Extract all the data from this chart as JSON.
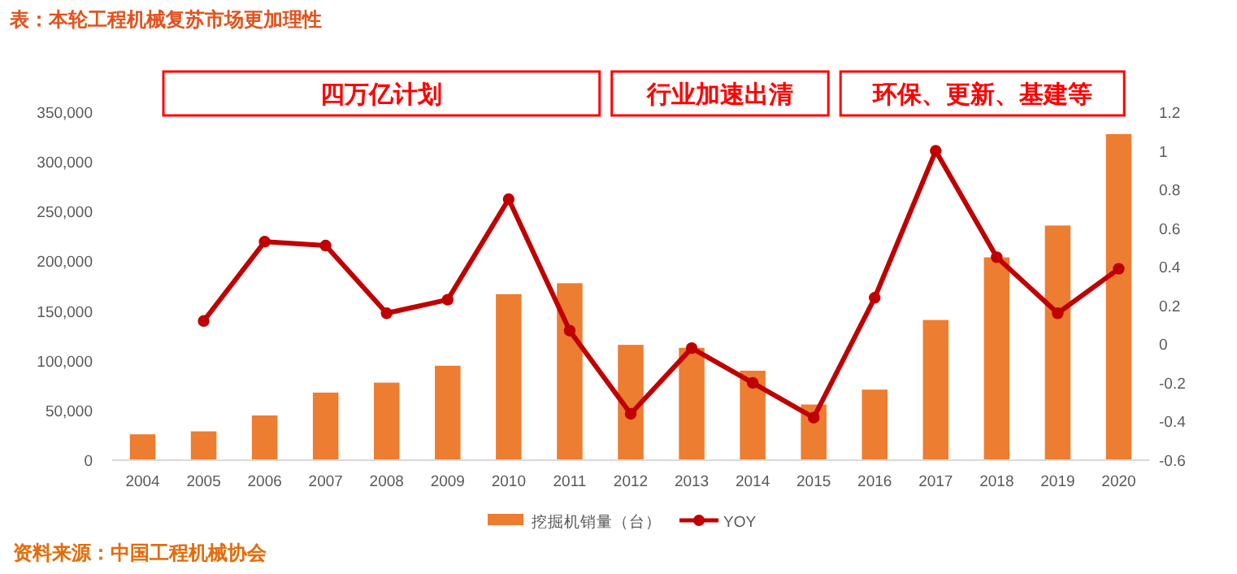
{
  "chart_data": {
    "type": "bar",
    "title": "表：本轮工程机械复苏市场更加理性",
    "categories": [
      "2004",
      "2005",
      "2006",
      "2007",
      "2008",
      "2009",
      "2010",
      "2011",
      "2012",
      "2013",
      "2014",
      "2015",
      "2016",
      "2017",
      "2018",
      "2019",
      "2020"
    ],
    "series": [
      {
        "name": "挖掘机销量（台）",
        "color": "#ed7d31",
        "values": [
          26000,
          29000,
          45000,
          68000,
          78000,
          95000,
          167000,
          178000,
          116000,
          113000,
          90000,
          56000,
          71000,
          141000,
          204000,
          236000,
          328000
        ]
      },
      {
        "name": "YOY",
        "type": "line",
        "axis": "y2",
        "color": "#c00000",
        "marker": "circle",
        "values": [
          null,
          0.12,
          0.53,
          0.51,
          0.16,
          0.23,
          0.75,
          0.07,
          -0.36,
          -0.02,
          -0.2,
          -0.38,
          0.24,
          1.0,
          0.45,
          0.16,
          0.39
        ]
      }
    ],
    "ylim": [
      0,
      350000
    ],
    "yticks": [
      {
        "value": 0,
        "label": "0"
      },
      {
        "value": 50000,
        "label": "50,000"
      },
      {
        "value": 100000,
        "label": "100,000"
      },
      {
        "value": 150000,
        "label": "150,000"
      },
      {
        "value": 200000,
        "label": "200,000"
      },
      {
        "value": 250000,
        "label": "250,000"
      },
      {
        "value": 300000,
        "label": "300,000"
      },
      {
        "value": 350000,
        "label": "350,000"
      }
    ],
    "y2lim": [
      -0.6,
      1.2
    ],
    "y2ticks": [
      -0.6,
      -0.4,
      -0.2,
      0,
      0.2,
      0.4,
      0.6,
      0.8,
      1,
      1.2
    ],
    "annotations": [
      "四万亿计划",
      "行业加速出清",
      "环保、更新、基建等",
      "资料来源：中国工程机械协会"
    ],
    "legend": "bottom",
    "grid": false
  }
}
